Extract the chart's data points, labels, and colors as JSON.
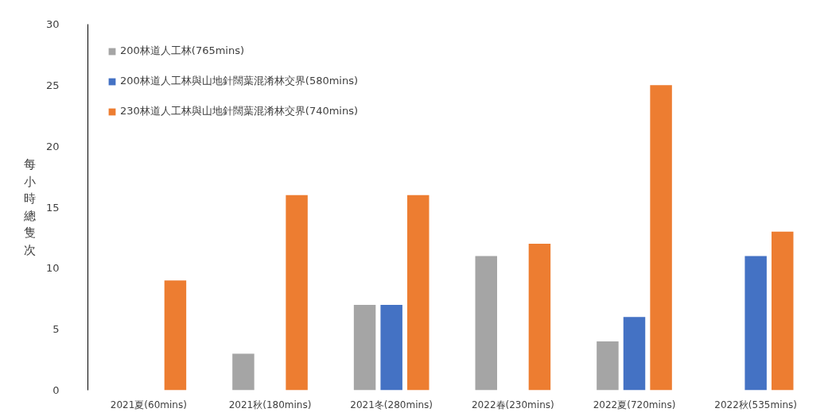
{
  "chart_data": {
    "type": "bar",
    "ylabel": "每小時總隻次",
    "categories": [
      "2021夏(60mins)",
      "2021秋(180mins)",
      "2021冬(280mins)",
      "2022春(230mins)",
      "2022夏(720mins)",
      "2022秋(535mins)"
    ],
    "series": [
      {
        "name": "200林道人工林(765mins)",
        "color": "#a5a5a5",
        "values": [
          null,
          3,
          7,
          11,
          4,
          null
        ]
      },
      {
        "name": "200林道人工林與山地針闊葉混淆林交界(580mins)",
        "color": "#4472c4",
        "values": [
          null,
          null,
          7,
          null,
          6,
          11
        ]
      },
      {
        "name": "230林道人工林與山地針闊葉混淆林交界(740mins)",
        "color": "#ed7d31",
        "values": [
          9,
          16,
          16,
          12,
          25,
          13
        ]
      }
    ],
    "ylim": [
      0,
      30
    ],
    "yticks": [
      0,
      5,
      10,
      15,
      20,
      25,
      30
    ],
    "grid": false,
    "legend": "top left"
  }
}
